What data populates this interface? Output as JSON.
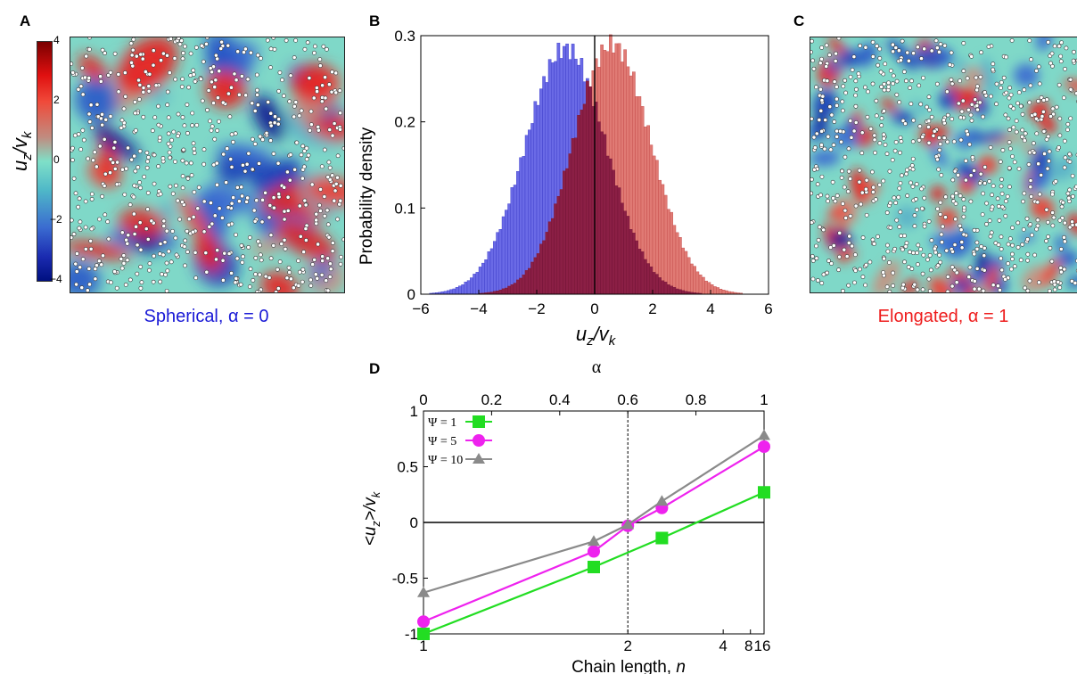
{
  "panels": {
    "A": {
      "letter": "A",
      "caption": "Spherical,  α = 0",
      "caption_color": "#1a1ad6",
      "colorbar": {
        "ticks": [
          "4",
          "2",
          "0",
          "−2",
          "−4"
        ],
        "label_main": "u",
        "label_sub": "z",
        "label_sep": "/v",
        "label_sub2": "k"
      }
    },
    "B": {
      "letter": "B"
    },
    "C": {
      "letter": "C",
      "caption": "Elongated,  α = 1",
      "caption_color": "#ee1c1c"
    },
    "D": {
      "letter": "D"
    }
  },
  "colors": {
    "blue_hist": "#6a6ae6",
    "red_hist": "#e07a74",
    "overlap_hist": "#8b1f45",
    "green": "#22dd22",
    "magenta": "#ee22ee",
    "gray": "#8a8a8a"
  },
  "chart_data": [
    {
      "id": "B",
      "type": "bar",
      "title": "",
      "xlabel_main": "u",
      "xlabel_sub": "z",
      "xlabel_sep": "/v",
      "xlabel_sub2": "k",
      "ylabel": "Probability density",
      "xlim": [
        -6,
        6
      ],
      "ylim": [
        0,
        0.3
      ],
      "xticks": [
        "−6",
        "−4",
        "−2",
        "0",
        "2",
        "4",
        "6"
      ],
      "yticks": [
        "0",
        "0.1",
        "0.2",
        "0.3"
      ],
      "vertical_line_x": 0,
      "series": [
        {
          "color": "blue",
          "mean": -1.0,
          "sd": 1.4,
          "peak": 0.285
        },
        {
          "color": "red",
          "mean": 0.6,
          "sd": 1.35,
          "peak": 0.29
        }
      ]
    },
    {
      "id": "D",
      "type": "line",
      "title": "",
      "xlabel": "Chain length, ",
      "xlabel_var": "n",
      "ylabel_main": "<u",
      "ylabel_sub": "z",
      "ylabel_sep": ">/v",
      "ylabel_sub2": "k",
      "top_xlabel": "α",
      "x_alpha": [
        0,
        0.5,
        0.6,
        0.7,
        1.0
      ],
      "xticks_bottom": [
        "1",
        "2",
        "4",
        "8",
        "16"
      ],
      "xticks_top": [
        "0",
        "0.2",
        "0.4",
        "0.6",
        "0.8",
        "1"
      ],
      "yticks": [
        "-1",
        "-0.5",
        "0",
        "0.5",
        "1"
      ],
      "xlim_alpha": [
        0,
        1
      ],
      "ylim": [
        -1,
        1
      ],
      "dashed_line_alpha": 0.6,
      "legend_position": "top-left",
      "series": [
        {
          "name": "Ψ = 1",
          "marker": "square",
          "color": "#22dd22",
          "x": [
            0,
            0.5,
            0.7,
            1.0
          ],
          "y": [
            -1.0,
            -0.4,
            -0.14,
            0.27
          ]
        },
        {
          "name": "Ψ = 5",
          "marker": "circle",
          "color": "#ee22ee",
          "x": [
            0,
            0.5,
            0.6,
            0.7,
            1.0
          ],
          "y": [
            -0.89,
            -0.26,
            -0.03,
            0.13,
            0.68
          ]
        },
        {
          "name": "Ψ = 10",
          "marker": "triangle",
          "color": "#8a8a8a",
          "x": [
            0,
            0.5,
            0.6,
            0.7,
            1.0
          ],
          "y": [
            -0.63,
            -0.17,
            -0.02,
            0.19,
            0.78
          ]
        }
      ]
    }
  ]
}
